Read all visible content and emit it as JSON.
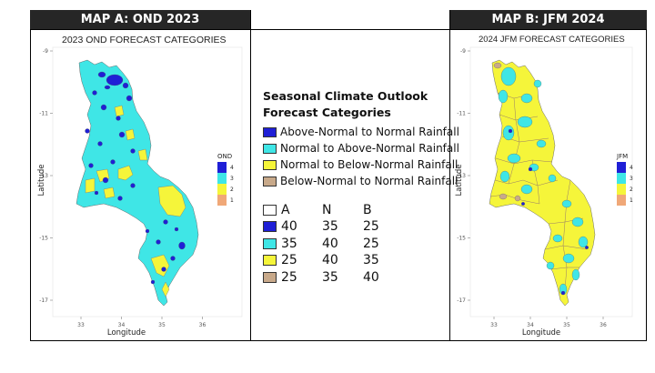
{
  "headers": {
    "map_a": "MAP A: OND 2023",
    "map_b": "MAP B: JFM 2024"
  },
  "map_a": {
    "title": "2023 OND FORECAST CATEGORIES",
    "legend_title": "OND",
    "y_ticks": [
      "-9",
      "-11",
      "-13",
      "-15",
      "-17"
    ],
    "x_ticks": [
      "33",
      "34",
      "35",
      "36"
    ],
    "xlabel": "Longitude",
    "ylabel": "Latitude",
    "legend_values": [
      "4",
      "3",
      "2",
      "1"
    ],
    "dominant_category": "3"
  },
  "map_b": {
    "title": "2024 JFM FORECAST CATEGORIES",
    "legend_title": "JFM",
    "y_ticks": [
      "-9",
      "-11",
      "-13",
      "-15",
      "-17"
    ],
    "x_ticks": [
      "33",
      "34",
      "35",
      "36"
    ],
    "xlabel": "Longitude",
    "ylabel": "Latitude",
    "legend_values": [
      "4",
      "3",
      "2",
      "1"
    ],
    "dominant_category": "2"
  },
  "colors": {
    "cat4": "#1f1fd6",
    "cat3": "#3fe6e6",
    "cat2": "#f5f53a",
    "cat1": "#f0a878",
    "tan": "#c8a98a",
    "white": "#ffffff"
  },
  "legend": {
    "title_line1": "Seasonal Climate Outlook",
    "title_line2": "Forecast Categories",
    "categories": [
      {
        "label": "Above-Normal to Normal Rainfall",
        "color": "#1f1fd6"
      },
      {
        "label": "Normal to Above-Normal Rainfall",
        "color": "#3fe6e6"
      },
      {
        "label": "Normal to Below-Normal Rainfall",
        "color": "#f5f53a"
      },
      {
        "label": "Below-Normal to Normal Rainfall",
        "color": "#c8a98a"
      }
    ],
    "prob_header": [
      "A",
      "N",
      "B"
    ],
    "prob_rows": [
      {
        "color": "#1f1fd6",
        "values": [
          "40",
          "35",
          "25"
        ]
      },
      {
        "color": "#3fe6e6",
        "values": [
          "35",
          "40",
          "25"
        ]
      },
      {
        "color": "#f5f53a",
        "values": [
          "25",
          "40",
          "35"
        ]
      },
      {
        "color": "#c8a98a",
        "values": [
          "25",
          "35",
          "40"
        ]
      }
    ]
  }
}
